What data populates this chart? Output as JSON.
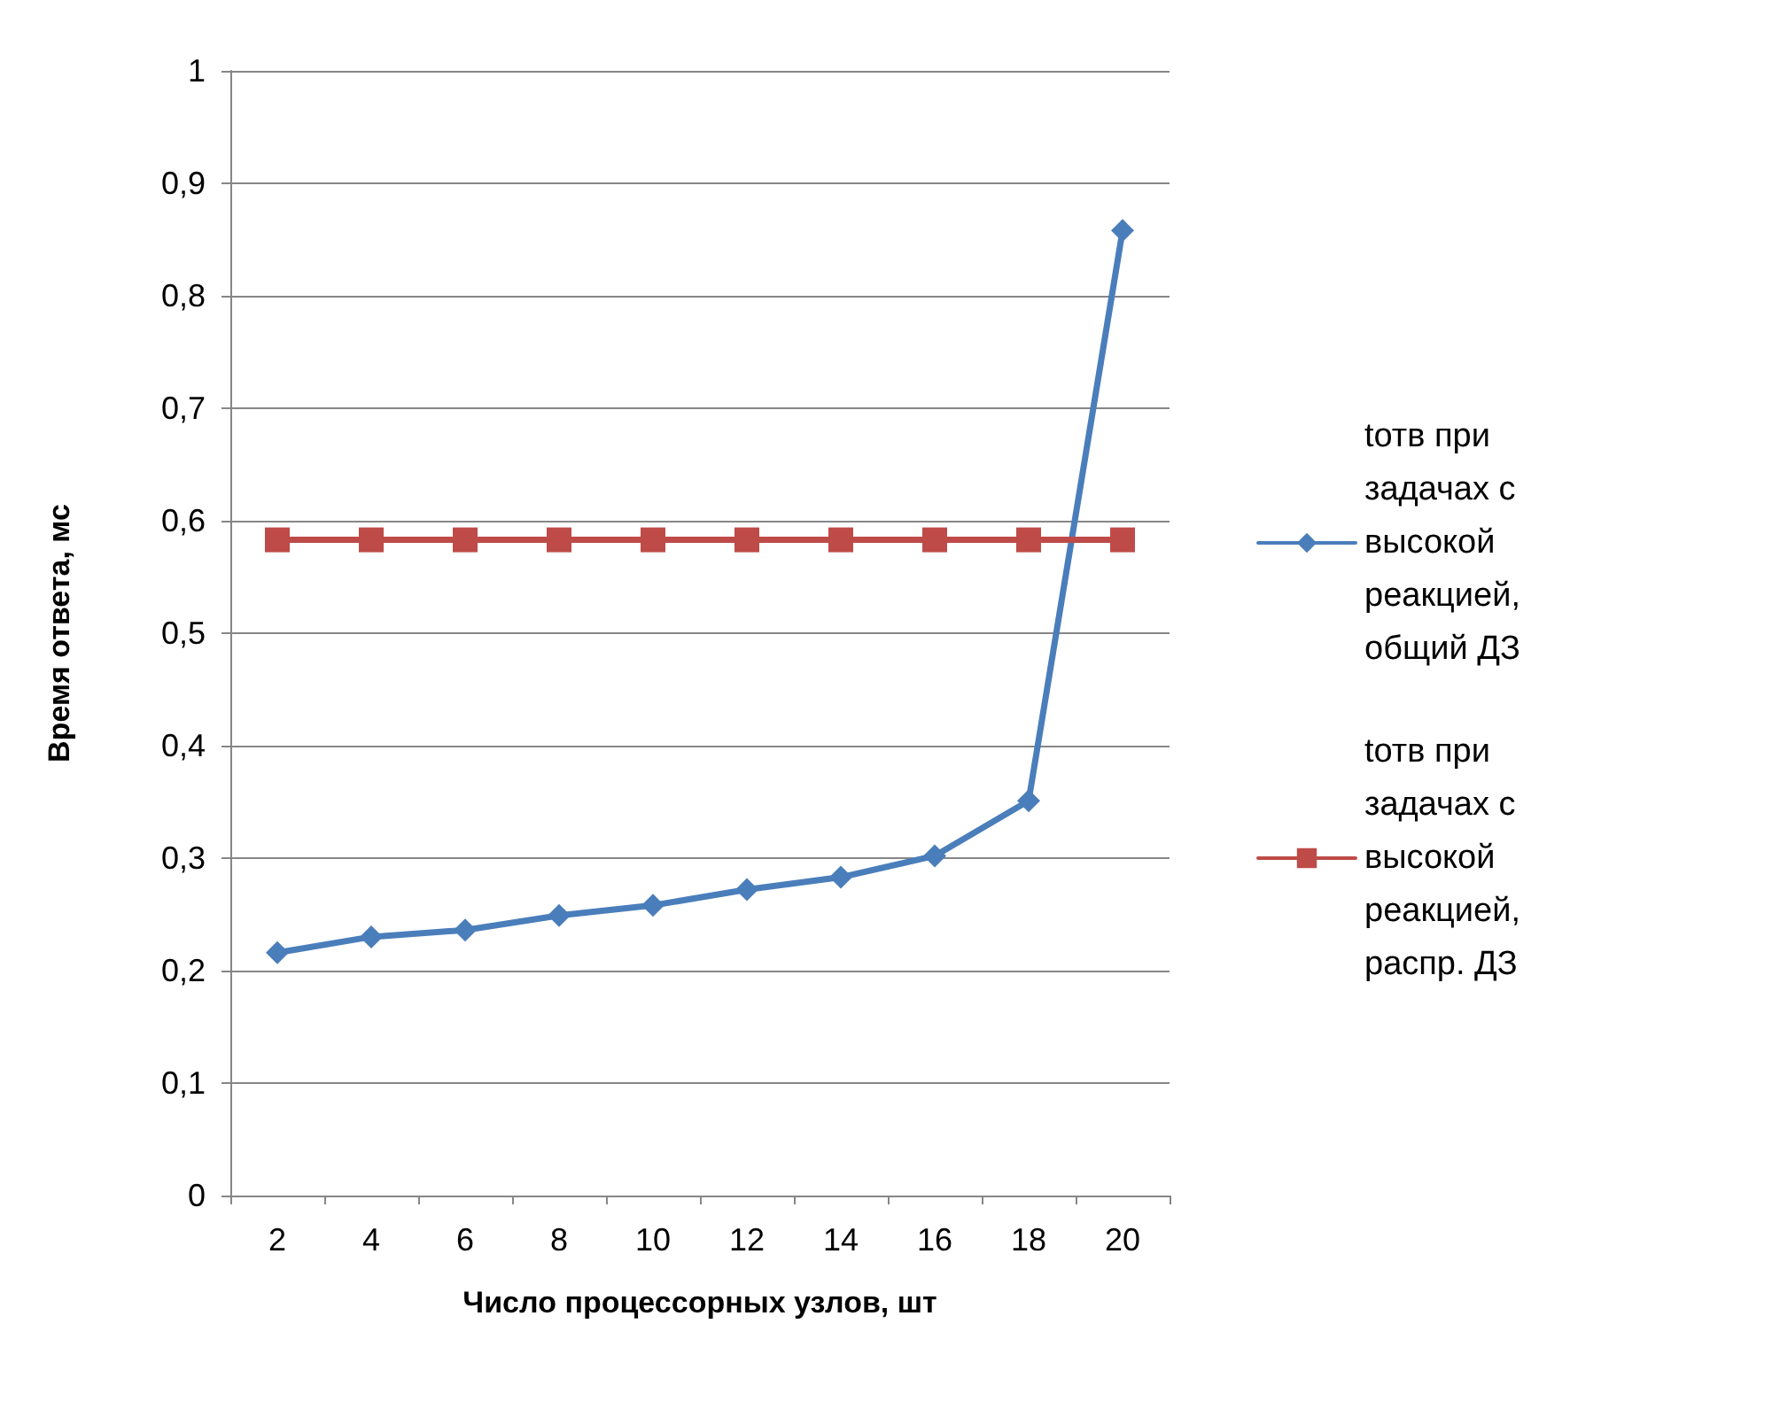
{
  "chart_data": {
    "type": "line",
    "xlabel": "Число процессорных узлов, шт",
    "ylabel": "Время ответа, мс",
    "categories": [
      "2",
      "4",
      "6",
      "8",
      "10",
      "12",
      "14",
      "16",
      "18",
      "20"
    ],
    "series": [
      {
        "name": "tотв при задачах с высокой реакцией, общий ДЗ",
        "color": "#4a7ebb",
        "marker": "diamond",
        "values": [
          0.216,
          0.23,
          0.236,
          0.249,
          0.258,
          0.272,
          0.283,
          0.302,
          0.351,
          0.858
        ]
      },
      {
        "name": "tотв при задачах с высокой реакцией, распр. ДЗ",
        "color": "#be4b48",
        "marker": "square",
        "values": [
          0.583,
          0.583,
          0.583,
          0.583,
          0.583,
          0.583,
          0.583,
          0.583,
          0.583,
          0.583
        ]
      }
    ],
    "ylim": [
      0,
      1
    ],
    "yticks": [
      {
        "value": 0,
        "label": "0"
      },
      {
        "value": 0.1,
        "label": "0,1"
      },
      {
        "value": 0.2,
        "label": "0,2"
      },
      {
        "value": 0.3,
        "label": "0,3"
      },
      {
        "value": 0.4,
        "label": "0,4"
      },
      {
        "value": 0.5,
        "label": "0,5"
      },
      {
        "value": 0.6,
        "label": "0,6"
      },
      {
        "value": 0.7,
        "label": "0,7"
      },
      {
        "value": 0.8,
        "label": "0,8"
      },
      {
        "value": 0.9,
        "label": "0,9"
      },
      {
        "value": 1,
        "label": "1"
      }
    ],
    "grid": "y",
    "legend": "right",
    "line_style": "solid"
  }
}
